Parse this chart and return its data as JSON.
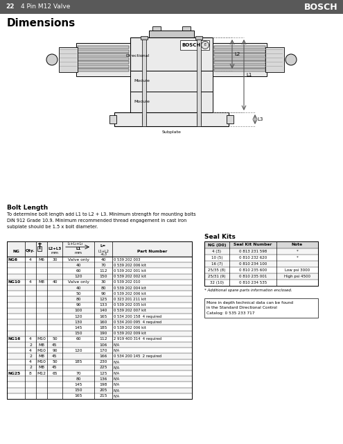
{
  "header_bg": "#595959",
  "header_text_color": "#ffffff",
  "header_page": "22",
  "header_section": "4 Pin M12 Valve",
  "header_brand": "BOSCH",
  "title": "Dimensions",
  "bolt_length_title": "Bolt Length",
  "bolt_length_text": "To determine bolt length add L1 to L2 + L3. Minimum strength for mounting bolts\nDIN 912 Grade 10.9. Minimum recommended thread engagement in cast iron\nsubplate should be 1.5 x bolt diameter.",
  "seal_kits_title": "Seal Kits",
  "seal_kits_headers": [
    "NG (D0)",
    "Seal Kit Number",
    "Note"
  ],
  "seal_kits_rows": [
    [
      "4 (3)",
      "0 813 231 598",
      "*"
    ],
    [
      "10 (5)",
      "0 810 232 620",
      "*"
    ],
    [
      "16 (7)",
      "0 810 234 100",
      ""
    ],
    [
      "25/35 (8)",
      "0 810 235 600",
      "Low psi 3000"
    ],
    [
      "25/31 (9)",
      "0 810 235 001",
      "High psi 4500"
    ],
    [
      "32 (10)",
      "0 810 234 535",
      ""
    ]
  ],
  "seal_kits_note": "* Additional spare parts information enclosed.",
  "seal_kits_more": "More in depth technical data can be found\nin the Standard Directional Control\nCatalog: 0 535 233 717",
  "table_row_data": [
    [
      "NG6",
      "4",
      "M6",
      "30",
      "Valve only",
      "40",
      "0 539 202 003"
    ],
    [
      "",
      "",
      "",
      "",
      "40",
      "70",
      "0 539 202 006 kit"
    ],
    [
      "",
      "",
      "",
      "",
      "60",
      "112",
      "0 539 202 001 kit"
    ],
    [
      "",
      "",
      "",
      "",
      "120",
      "150",
      "0 539 202 002 kit"
    ],
    [
      "NG10",
      "4",
      "M8",
      "40",
      "Valve only",
      "30",
      "0 539 202 010"
    ],
    [
      "",
      "",
      "",
      "",
      "40",
      "80",
      "0 539 202 004 kit"
    ],
    [
      "",
      "",
      "",
      "",
      "50",
      "90",
      "0 539 202 006 kit"
    ],
    [
      "",
      "",
      "",
      "",
      "80",
      "125",
      "0 323 201 211 kit"
    ],
    [
      "",
      "",
      "",
      "",
      "90",
      "133",
      "0 539 202 035 kit"
    ],
    [
      "",
      "",
      "",
      "",
      "100",
      "140",
      "0 539 202 007 kit"
    ],
    [
      "",
      "",
      "",
      "",
      "120",
      "165",
      "0 534 200 158  4 required"
    ],
    [
      "",
      "",
      "",
      "",
      "130",
      "160",
      "0 534 200 095  4 required"
    ],
    [
      "",
      "",
      "",
      "",
      "145",
      "185",
      "0 539 202 006 kit"
    ],
    [
      "",
      "",
      "",
      "",
      "150",
      "190",
      "0 539 202 009 kit"
    ],
    [
      "NG16",
      "4",
      "M10",
      "50",
      "60",
      "112",
      "2 919 400 314  4 required"
    ],
    [
      "",
      "2",
      "M8",
      "45",
      "",
      "106",
      "N/A"
    ],
    [
      "",
      "4",
      "M10",
      "90",
      "120",
      "170",
      "N/A"
    ],
    [
      "",
      "2",
      "M8",
      "45",
      "",
      "166",
      "0 534 200 145  2 required"
    ],
    [
      "",
      "4",
      "M10",
      "50",
      "185",
      "230",
      "N/A"
    ],
    [
      "",
      "2",
      "M8",
      "45",
      "",
      "225",
      "N/A"
    ],
    [
      "NG25",
      "8",
      "M12",
      "65",
      "70",
      "125",
      "N/A"
    ],
    [
      "",
      "",
      "",
      "",
      "80",
      "136",
      "N/A"
    ],
    [
      "",
      "",
      "",
      "",
      "145",
      "198",
      "N/A"
    ],
    [
      "",
      "",
      "",
      "",
      "150",
      "205",
      "N/A"
    ],
    [
      "",
      "",
      "",
      "",
      "165",
      "215",
      "N/A"
    ]
  ],
  "bg_color": "#ffffff"
}
